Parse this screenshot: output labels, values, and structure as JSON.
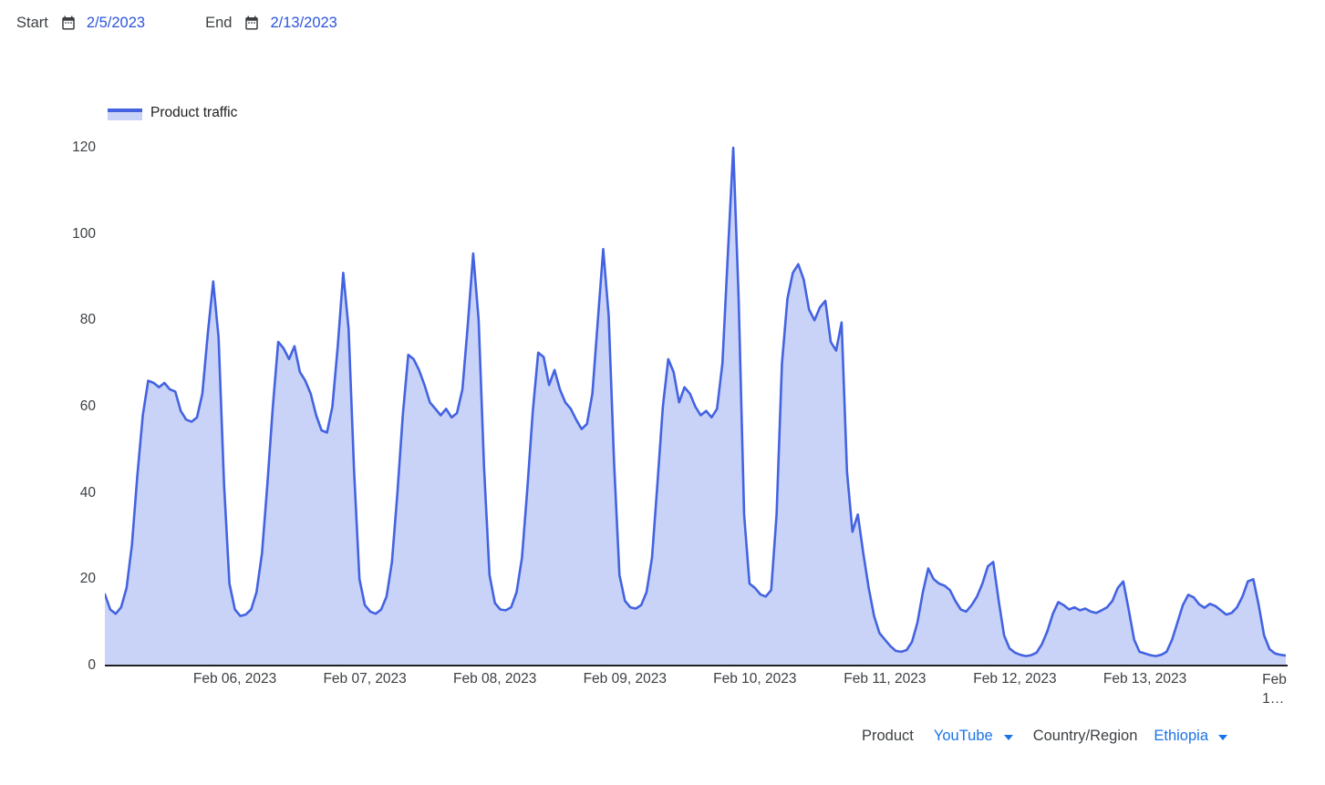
{
  "header": {
    "start_label": "Start",
    "start_date": "2/5/2023",
    "end_label": "End",
    "end_date": "2/13/2023"
  },
  "legend": {
    "label": "Product traffic"
  },
  "footer": {
    "product_label": "Product",
    "product_value": "YouTube",
    "country_label": "Country/Region",
    "country_value": "Ethiopia"
  },
  "icons": {
    "start_calendar": "calendar-icon",
    "end_calendar": "calendar-icon",
    "product_chevron": "chevron-down-icon",
    "country_chevron": "chevron-down-icon"
  },
  "colors": {
    "line": "#4363e1",
    "fill": "#c9d3f7",
    "date_blue": "#2c55dd",
    "link_blue": "#1a73e8",
    "text_dark": "#3c4043",
    "axis": "#202124"
  },
  "chart_data": {
    "type": "area",
    "title": "",
    "xlabel": "",
    "ylabel": "",
    "ylim": [
      0,
      120
    ],
    "y_ticks": [
      0,
      20,
      40,
      60,
      80,
      100,
      120
    ],
    "grid": false,
    "legend_position": "top-left",
    "x_start": "2023-02-05 00:00",
    "x_interval_hours": 1,
    "x_ticks": [
      {
        "label": "Feb 06, 2023",
        "hour": 24
      },
      {
        "label": "Feb 07, 2023",
        "hour": 48
      },
      {
        "label": "Feb 08, 2023",
        "hour": 72
      },
      {
        "label": "Feb 09, 2023",
        "hour": 96
      },
      {
        "label": "Feb 10, 2023",
        "hour": 120
      },
      {
        "label": "Feb 11, 2023",
        "hour": 144
      },
      {
        "label": "Feb 12, 2023",
        "hour": 168
      },
      {
        "label": "Feb 13, 2023",
        "hour": 192
      },
      {
        "label": "Feb 1…",
        "hour": 216,
        "wrap": true
      }
    ],
    "series": [
      {
        "name": "Product traffic",
        "color": "#4363e1",
        "fill": "#c9d3f7",
        "values": [
          16.5,
          13,
          12,
          13.5,
          18,
          28,
          44,
          58,
          66,
          65.5,
          64.5,
          65.5,
          64,
          63.5,
          59,
          57,
          56.5,
          57.5,
          63,
          77,
          89,
          76,
          42,
          19,
          13,
          11.5,
          11.8,
          13,
          17,
          26,
          42,
          60,
          75,
          73.5,
          71,
          74,
          68,
          66,
          63,
          58,
          54.5,
          54,
          60,
          74,
          91,
          78,
          45,
          20,
          14,
          12.5,
          12,
          13,
          16,
          24,
          40,
          58,
          72,
          71,
          68.5,
          65,
          61,
          59.5,
          58,
          59.5,
          57.5,
          58.5,
          64,
          79,
          95.5,
          80,
          46,
          21,
          14.5,
          13,
          12.8,
          13.5,
          17,
          25,
          41,
          59,
          72.5,
          71.5,
          65,
          68.5,
          64,
          61,
          59.5,
          57,
          54.8,
          56,
          63,
          80,
          96.5,
          81,
          47,
          21,
          15,
          13.5,
          13.2,
          14,
          17,
          25,
          42,
          60,
          71,
          68,
          61,
          64.5,
          63,
          60,
          58,
          59,
          57.5,
          59.5,
          70,
          95,
          120,
          85,
          35,
          19,
          18,
          16.5,
          16,
          17.5,
          35,
          70,
          85,
          91,
          93,
          89.5,
          82.5,
          80,
          83,
          84.5,
          75,
          73,
          79.5,
          45,
          31,
          35,
          26,
          18,
          11.5,
          7.5,
          6,
          4.5,
          3.4,
          3.2,
          3.6,
          5.5,
          10,
          17,
          22.5,
          20,
          19,
          18.5,
          17.5,
          15,
          13,
          12.5,
          14,
          16,
          19,
          23,
          24,
          15,
          7,
          4,
          3,
          2.5,
          2.2,
          2.4,
          3,
          5,
          8,
          12,
          14.7,
          14,
          13,
          13.5,
          12.8,
          13.2,
          12.5,
          12.2,
          12.8,
          13.5,
          15,
          18,
          19.5,
          13,
          6,
          3.2,
          2.8,
          2.4,
          2.2,
          2.5,
          3.2,
          6,
          10,
          14,
          16.4,
          15.8,
          14.2,
          13.4,
          14.3,
          13.8,
          12.8,
          11.8,
          12.2,
          13.5,
          16,
          19.5,
          20,
          14,
          7,
          3.8,
          2.8,
          2.5,
          2.3
        ]
      }
    ]
  }
}
